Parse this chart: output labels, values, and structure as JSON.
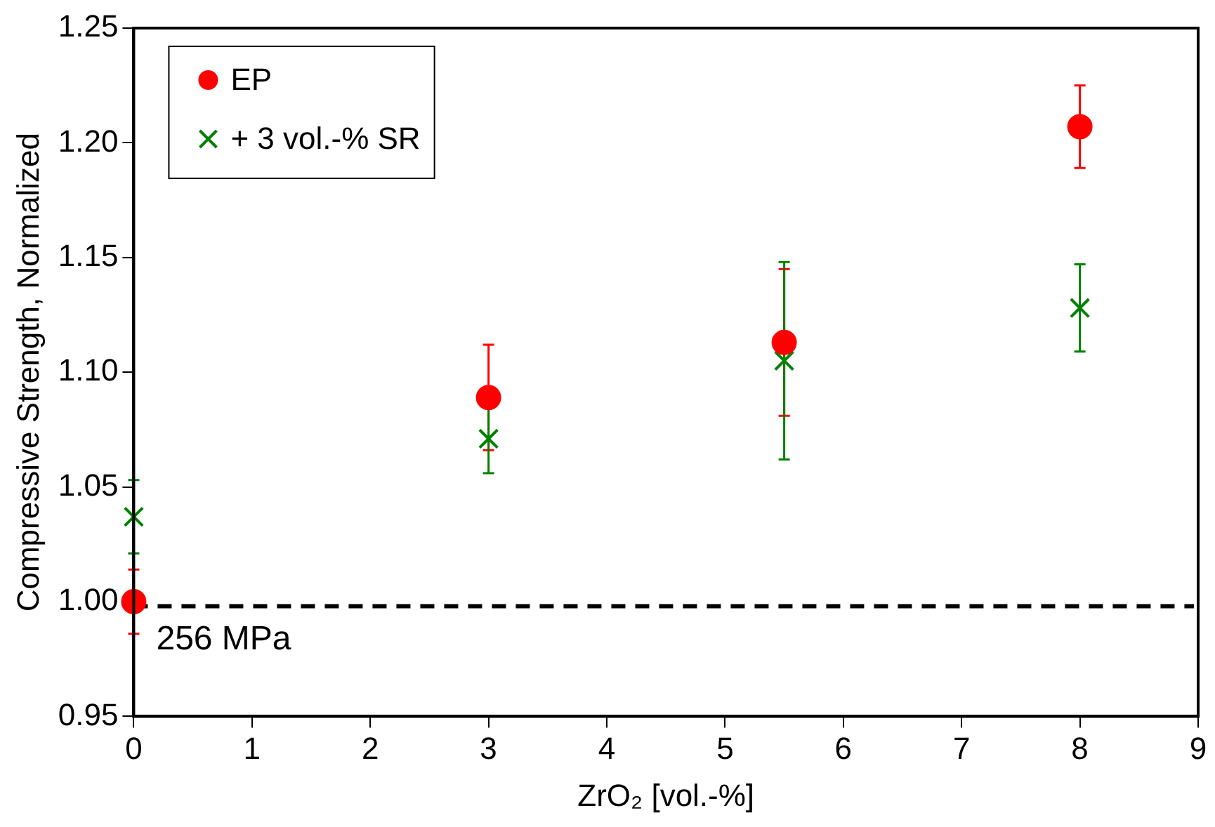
{
  "chart_data": {
    "type": "scatter",
    "xlabel": "ZrO₂ [vol.-%]",
    "ylabel": "Compressive Strength, Normalized",
    "xlim": [
      0,
      9
    ],
    "xticks": [
      0,
      1,
      2,
      3,
      4,
      5,
      6,
      7,
      8,
      9
    ],
    "ylim": [
      0.95,
      1.25
    ],
    "yticks": [
      0.95,
      {
        "value": 1,
        "label": "1.00"
      },
      1.05,
      {
        "value": 1.1,
        "label": "1.10"
      },
      1.15,
      {
        "value": 1.2,
        "label": "1.20"
      },
      1.25
    ],
    "grid": false,
    "legend": "top left",
    "series": [
      {
        "name": "EP",
        "color": "#ff0000",
        "marker": "circle",
        "x": [
          0,
          3,
          5.5,
          8
        ],
        "values": [
          1.0,
          1.089,
          1.113,
          1.207
        ],
        "errors": [
          0.014,
          0.023,
          0.032,
          0.018
        ]
      },
      {
        "name": "+ 3 vol.-% SR",
        "color": "#008000",
        "marker": "cross",
        "x": [
          0,
          3,
          5.5,
          8
        ],
        "values": [
          1.037,
          1.071,
          1.105,
          1.128
        ],
        "errors": [
          0.016,
          0.015,
          0.043,
          0.019
        ]
      }
    ],
    "ref_lines": [
      {
        "axis": "y",
        "value": 0.998,
        "label": "256 MPa",
        "color": "#000000",
        "line_style": "dashed"
      }
    ]
  }
}
